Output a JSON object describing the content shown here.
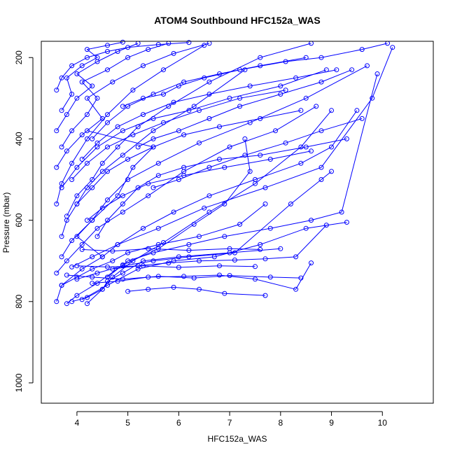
{
  "chart_data": {
    "type": "line",
    "title": "ATOM4 Southbound HFC152a_WAS",
    "xlabel": "HFC152a_WAS",
    "ylabel": "Pressure (mbar)",
    "xlim": [
      3.3,
      11.0
    ],
    "ylim": [
      1050,
      160
    ],
    "y_reversed": true,
    "x_ticks": [
      4,
      5,
      6,
      7,
      8,
      9,
      10
    ],
    "y_ticks": [
      200,
      400,
      600,
      800,
      1000
    ],
    "grid": false,
    "legend": "none",
    "colors": {
      "series": "#0000ff",
      "axes": "#000000",
      "background": "#ffffff"
    },
    "series": [
      {
        "x": [
          3.6,
          3.7,
          4.1,
          4.5,
          4.0,
          4.3,
          4.8,
          5.1,
          5.5,
          4.2
        ],
        "y": [
          800,
          760,
          720,
          690,
          640,
          600,
          540,
          470,
          420,
          380
        ]
      },
      {
        "x": [
          3.8,
          4.0,
          4.4,
          4.9,
          5.6,
          6.3,
          6.9,
          7.4,
          7.3
        ],
        "y": [
          805,
          785,
          755,
          710,
          670,
          610,
          560,
          480,
          400
        ]
      },
      {
        "x": [
          3.9,
          4.2,
          4.5,
          4.6,
          4.9,
          5.3,
          6.0,
          7.0,
          8.0
        ],
        "y": [
          800,
          790,
          770,
          750,
          730,
          700,
          690,
          680,
          670
        ]
      },
      {
        "x": [
          4.1,
          4.6,
          5.2,
          5.9,
          6.7,
          7.6,
          8.5,
          9.3
        ],
        "y": [
          795,
          760,
          720,
          700,
          690,
          660,
          620,
          605
        ]
      },
      {
        "x": [
          3.7,
          4.0,
          4.3,
          4.7,
          5.0,
          5.6,
          6.4,
          7.2,
          7.7
        ],
        "y": [
          760,
          740,
          720,
          700,
          680,
          660,
          640,
          610,
          560
        ]
      },
      {
        "x": [
          4.0,
          4.4,
          4.9,
          5.5,
          6.2,
          7.1,
          8.2,
          8.8,
          9.0
        ],
        "y": [
          745,
          730,
          712,
          700,
          690,
          680,
          560,
          500,
          480
        ]
      },
      {
        "x": [
          3.9,
          4.3,
          4.8,
          5.6,
          6.5,
          7.7,
          8.8,
          9.8,
          10.2
        ],
        "y": [
          715,
          690,
          660,
          620,
          570,
          520,
          470,
          300,
          175
        ]
      },
      {
        "x": [
          4.2,
          4.5,
          4.7,
          5.1,
          5.7,
          6.6,
          7.5,
          8.4,
          9.0
        ],
        "y": [
          805,
          770,
          740,
          700,
          655,
          580,
          510,
          420,
          330
        ]
      },
      {
        "x": [
          3.6,
          3.8,
          4.1,
          4.4,
          4.9,
          5.4,
          6.1,
          7.0,
          7.9,
          8.7
        ],
        "y": [
          730,
          700,
          660,
          620,
          580,
          540,
          480,
          420,
          380,
          320
        ]
      },
      {
        "x": [
          3.7,
          3.9,
          4.3,
          4.6,
          5.0,
          5.6,
          6.4,
          7.4,
          8.5,
          9.7
        ],
        "y": [
          690,
          650,
          600,
          550,
          500,
          460,
          410,
          360,
          300,
          220
        ]
      },
      {
        "x": [
          3.7,
          3.8,
          4.0,
          4.2,
          4.5,
          4.9,
          5.5,
          6.3,
          7.3
        ],
        "y": [
          640,
          600,
          560,
          520,
          480,
          440,
          380,
          320,
          230
        ]
      },
      {
        "x": [
          3.8,
          4.0,
          4.3,
          4.5,
          4.8,
          5.2,
          5.8,
          6.6,
          7.6,
          8.6
        ],
        "y": [
          590,
          540,
          500,
          460,
          420,
          370,
          320,
          260,
          200,
          165
        ]
      },
      {
        "x": [
          3.6,
          3.7,
          3.9,
          4.2,
          4.6,
          5.1,
          5.7,
          6.5
        ],
        "y": [
          560,
          510,
          460,
          400,
          340,
          280,
          230,
          170
        ]
      },
      {
        "x": [
          3.7,
          4.0,
          4.4,
          4.9,
          5.5,
          6.2,
          7.0,
          8.0,
          8.9
        ],
        "y": [
          520,
          470,
          420,
          380,
          350,
          330,
          300,
          270,
          230
        ]
      },
      {
        "x": [
          3.6,
          3.8,
          4.1,
          4.5,
          4.2,
          4.7,
          5.3,
          5.9,
          6.6
        ],
        "y": [
          470,
          430,
          390,
          350,
          300,
          260,
          220,
          190,
          165
        ]
      },
      {
        "x": [
          3.7,
          3.9,
          4.2,
          4.4,
          4.1,
          4.6,
          5.0,
          5.4,
          5.8
        ],
        "y": [
          420,
          380,
          340,
          300,
          260,
          230,
          200,
          180,
          165
        ]
      },
      {
        "x": [
          3.6,
          3.8,
          4.0,
          4.3,
          4.0,
          4.4,
          4.8,
          5.2
        ],
        "y": [
          380,
          340,
          300,
          270,
          240,
          210,
          185,
          165
        ]
      },
      {
        "x": [
          3.7,
          3.9,
          3.8,
          4.1,
          4.4,
          4.2,
          4.6,
          4.9
        ],
        "y": [
          330,
          290,
          250,
          220,
          200,
          180,
          170,
          162
        ]
      },
      {
        "x": [
          3.6,
          3.7,
          3.9,
          4.2,
          4.6,
          5.0,
          5.6,
          6.2
        ],
        "y": [
          280,
          250,
          220,
          200,
          185,
          175,
          168,
          163
        ]
      },
      {
        "x": [
          4.4,
          4.6,
          4.9,
          5.2,
          5.6,
          6.1,
          6.8,
          7.6,
          8.5,
          9.3
        ],
        "y": [
          640,
          600,
          560,
          520,
          490,
          470,
          450,
          440,
          420,
          400
        ]
      },
      {
        "x": [
          4.5,
          4.8,
          5.3,
          5.9,
          6.6,
          7.5,
          8.4,
          9.0,
          9.5
        ],
        "y": [
          690,
          660,
          620,
          580,
          540,
          500,
          460,
          420,
          330
        ]
      },
      {
        "x": [
          4.6,
          5.0,
          5.5,
          6.2,
          6.9,
          7.8,
          8.6,
          9.2,
          9.9
        ],
        "y": [
          740,
          700,
          680,
          660,
          640,
          620,
          600,
          580,
          240
        ]
      },
      {
        "x": [
          4.7,
          5.2,
          5.8,
          6.4,
          7.1,
          7.7,
          8.3,
          8.9
        ],
        "y": [
          720,
          712,
          705,
          700,
          698,
          695,
          690,
          612
        ]
      },
      {
        "x": [
          4.3,
          4.8,
          5.4,
          6.1,
          6.8,
          7.5,
          8.3,
          8.6
        ],
        "y": [
          755,
          750,
          740,
          738,
          735,
          745,
          770,
          705
        ]
      },
      {
        "x": [
          5.0,
          5.4,
          5.9,
          6.4,
          6.9,
          7.7
        ],
        "y": [
          775,
          770,
          765,
          770,
          780,
          785
        ]
      },
      {
        "x": [
          3.8,
          4.3,
          4.9,
          5.6,
          6.3,
          7.0,
          7.8,
          8.4
        ],
        "y": [
          735,
          740,
          745,
          738,
          742,
          736,
          740,
          742
        ]
      },
      {
        "x": [
          4.0,
          4.6,
          5.3,
          6.0,
          6.8,
          7.5
        ],
        "y": [
          712,
          715,
          712,
          716,
          712,
          714
        ]
      },
      {
        "x": [
          4.1,
          4.7,
          5.4,
          6.2,
          7.0,
          7.6
        ],
        "y": [
          672,
          676,
          670,
          674,
          670,
          672
        ]
      },
      {
        "x": [
          4.9,
          5.3,
          5.7,
          6.0,
          6.5,
          7.2,
          8.1,
          8.8,
          9.6,
          10.1
        ],
        "y": [
          320,
          300,
          290,
          270,
          250,
          230,
          210,
          200,
          180,
          165
        ]
      },
      {
        "x": [
          5.2,
          5.5,
          6.0,
          6.6,
          7.2,
          8.0,
          8.8,
          9.4
        ],
        "y": [
          420,
          400,
          380,
          350,
          320,
          290,
          260,
          230
        ]
      },
      {
        "x": [
          5.5,
          6.0,
          6.6,
          7.3,
          8.1,
          8.8,
          9.6
        ],
        "y": [
          520,
          500,
          470,
          440,
          410,
          380,
          350
        ]
      },
      {
        "x": [
          4.2,
          4.5,
          4.9,
          5.4,
          6.1,
          6.9,
          7.8,
          8.6
        ],
        "y": [
          600,
          570,
          540,
          510,
          490,
          470,
          450,
          430
        ]
      },
      {
        "x": [
          4.0,
          4.3,
          4.6,
          5.0,
          5.5,
          6.1,
          6.8,
          7.6,
          8.4
        ],
        "y": [
          560,
          520,
          480,
          450,
          420,
          390,
          370,
          350,
          330
        ]
      },
      {
        "x": [
          3.9,
          4.2,
          4.6,
          5.1,
          5.7,
          6.4,
          7.2,
          8.1
        ],
        "y": [
          500,
          460,
          420,
          390,
          360,
          330,
          300,
          280
        ]
      },
      {
        "x": [
          4.1,
          4.4,
          4.8,
          5.3,
          5.9,
          6.6,
          7.4,
          8.3,
          9.1
        ],
        "y": [
          450,
          410,
          370,
          340,
          310,
          290,
          270,
          250,
          230
        ]
      },
      {
        "x": [
          4.3,
          4.6,
          5.0,
          5.5,
          6.1,
          6.8,
          7.6,
          8.5
        ],
        "y": [
          400,
          360,
          320,
          290,
          260,
          240,
          220,
          200
        ]
      }
    ]
  }
}
